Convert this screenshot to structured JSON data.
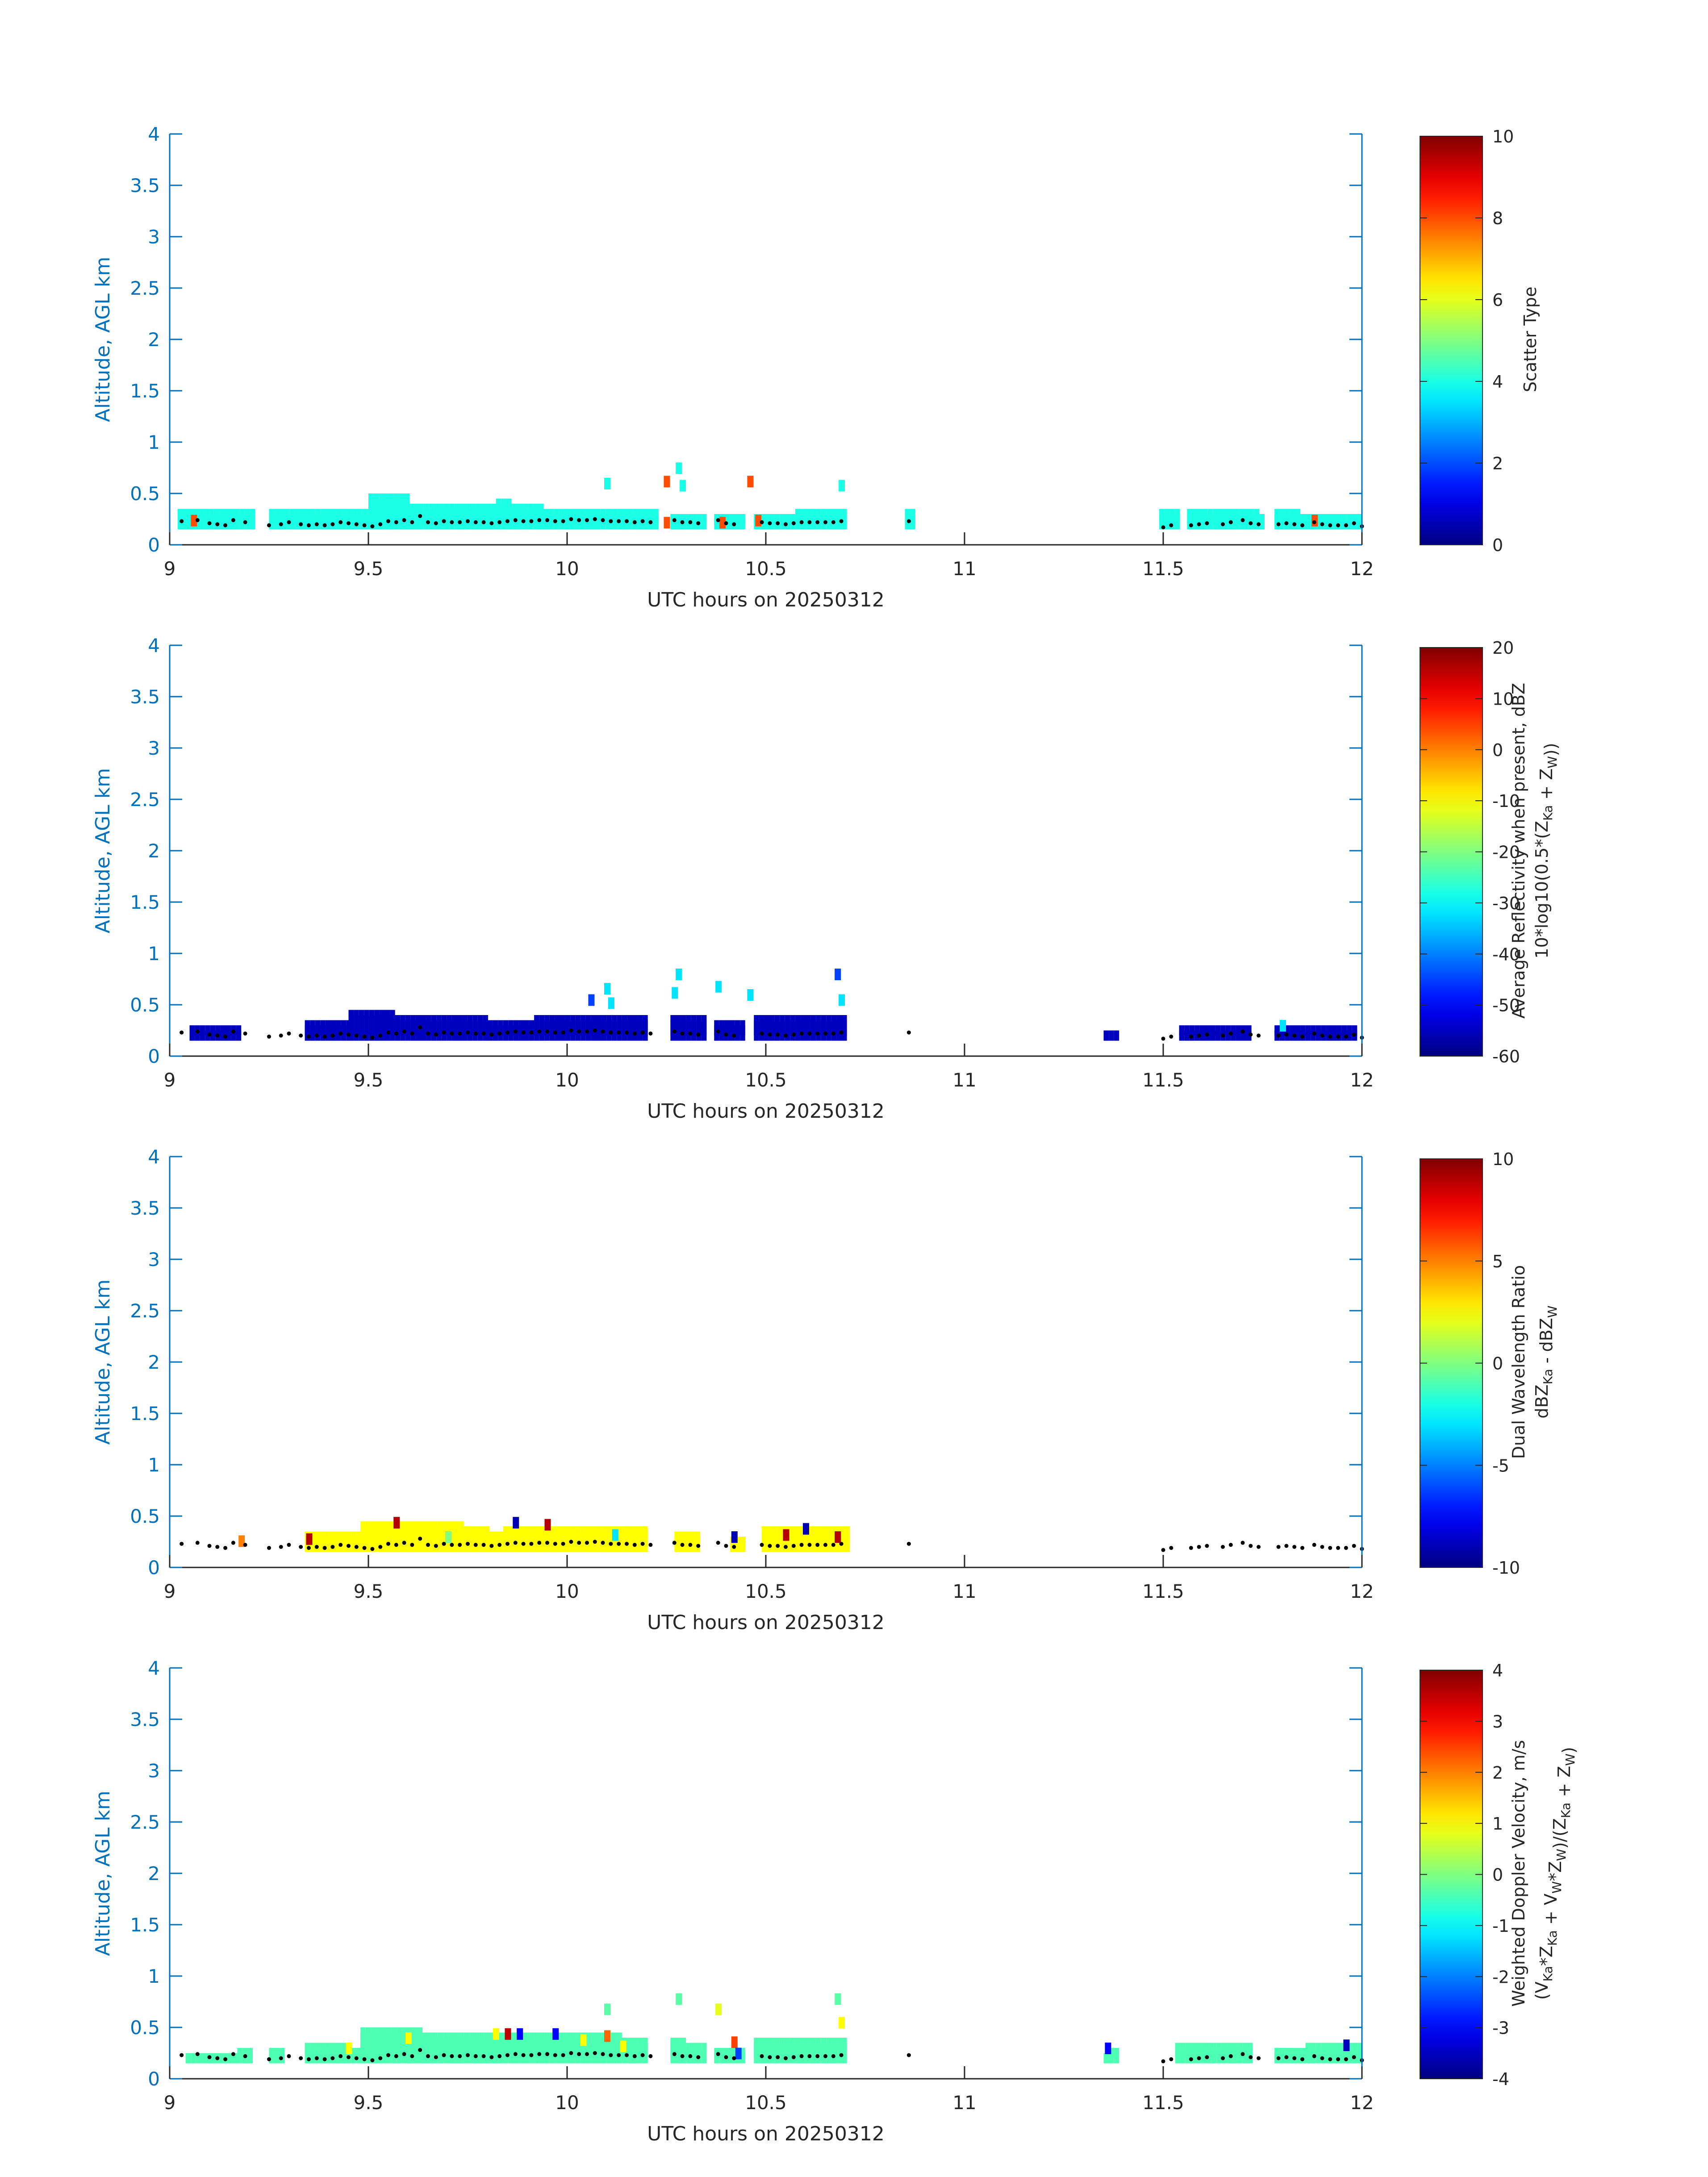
{
  "figure": {
    "axis_color": "#0072BD",
    "text_color": "#262626",
    "background": "#ffffff"
  },
  "chart_data": [
    {
      "type": "heatmap",
      "xlabel": "UTC hours on 20250312",
      "ylabel": "Altitude, AGL km",
      "xlim": [
        9,
        12
      ],
      "ylim": [
        0,
        4
      ],
      "x_ticks": [
        "9",
        "9.5",
        "10",
        "10.5",
        "11",
        "11.5",
        "12"
      ],
      "y_ticks": [
        "0",
        "0.5",
        "1",
        "1.5",
        "2",
        "2.5",
        "3",
        "3.5",
        "4"
      ],
      "colorbar": {
        "label_lines": [
          "Scatter Type"
        ],
        "range": [
          0,
          10
        ],
        "ticks": [
          "0",
          "2",
          "4",
          "6",
          "8",
          "10"
        ]
      },
      "dominant_value": 4,
      "fill_segments": [
        [
          9.02,
          9.21,
          0.35
        ],
        [
          9.25,
          9.5,
          0.35
        ],
        [
          9.5,
          9.6,
          0.45
        ],
        [
          9.6,
          9.85,
          0.42
        ],
        [
          9.85,
          10.1,
          0.38
        ],
        [
          10.1,
          10.22,
          0.35
        ],
        [
          10.26,
          10.35,
          0.3
        ],
        [
          10.37,
          10.44,
          0.3
        ],
        [
          10.47,
          10.7,
          0.32
        ],
        [
          10.85,
          10.87,
          0.35
        ],
        [
          11.49,
          11.53,
          0.35
        ],
        [
          11.56,
          11.75,
          0.32
        ],
        [
          11.78,
          12.0,
          0.32
        ]
      ],
      "features": [
        {
          "x": 10.1,
          "y": 0.6,
          "value": 4
        },
        {
          "x": 10.28,
          "y": 0.75,
          "value": 4
        },
        {
          "x": 10.29,
          "y": 0.58,
          "value": 4
        },
        {
          "x": 10.69,
          "y": 0.58,
          "value": 4
        },
        {
          "x": 10.25,
          "y": 0.62,
          "value": 8
        },
        {
          "x": 10.25,
          "y": 0.22,
          "value": 8
        },
        {
          "x": 10.46,
          "y": 0.62,
          "value": 8
        },
        {
          "x": 10.39,
          "y": 0.22,
          "value": 8
        },
        {
          "x": 10.48,
          "y": 0.24,
          "value": 8
        },
        {
          "x": 9.06,
          "y": 0.24,
          "value": 8
        },
        {
          "x": 11.88,
          "y": 0.24,
          "value": 8
        }
      ]
    },
    {
      "type": "heatmap",
      "xlabel": "UTC hours on 20250312",
      "ylabel": "Altitude, AGL km",
      "xlim": [
        9,
        12
      ],
      "ylim": [
        0,
        4
      ],
      "x_ticks": [
        "9",
        "9.5",
        "10",
        "10.5",
        "11",
        "11.5",
        "12"
      ],
      "y_ticks": [
        "0",
        "0.5",
        "1",
        "1.5",
        "2",
        "2.5",
        "3",
        "3.5",
        "4"
      ],
      "colorbar": {
        "label_lines": [
          "Average Reflectivity when present, dBZ",
          "10*log10(0.5*(Z_Ka + Z_W))"
        ],
        "range": [
          -60,
          20
        ],
        "ticks": [
          "-60",
          "-50",
          "-40",
          "-30",
          "-20",
          "-10",
          "0",
          "10",
          "20"
        ]
      },
      "dominant_value": -55,
      "fill_segments": [
        [
          9.05,
          9.18,
          0.28
        ],
        [
          9.34,
          9.45,
          0.33
        ],
        [
          9.45,
          9.8,
          0.42
        ],
        [
          9.8,
          10.2,
          0.38
        ],
        [
          10.26,
          10.35,
          0.36
        ],
        [
          10.37,
          10.44,
          0.32
        ],
        [
          10.47,
          10.7,
          0.38
        ],
        [
          11.35,
          11.38,
          0.26
        ],
        [
          11.54,
          11.72,
          0.3
        ],
        [
          11.78,
          11.98,
          0.3
        ]
      ],
      "features": [
        {
          "x": 10.1,
          "y": 0.66,
          "value": -32
        },
        {
          "x": 10.11,
          "y": 0.52,
          "value": -32
        },
        {
          "x": 10.28,
          "y": 0.8,
          "value": -32
        },
        {
          "x": 10.27,
          "y": 0.62,
          "value": -32
        },
        {
          "x": 10.38,
          "y": 0.68,
          "value": -32
        },
        {
          "x": 10.46,
          "y": 0.6,
          "value": -32
        },
        {
          "x": 10.69,
          "y": 0.55,
          "value": -32
        },
        {
          "x": 10.68,
          "y": 0.8,
          "value": -45
        },
        {
          "x": 10.06,
          "y": 0.55,
          "value": -45
        },
        {
          "x": 11.8,
          "y": 0.3,
          "value": -32
        }
      ]
    },
    {
      "type": "heatmap",
      "xlabel": "UTC hours on 20250312",
      "ylabel": "Altitude, AGL km",
      "xlim": [
        9,
        12
      ],
      "ylim": [
        0,
        4
      ],
      "x_ticks": [
        "9",
        "9.5",
        "10",
        "10.5",
        "11",
        "11.5",
        "12"
      ],
      "y_ticks": [
        "0",
        "0.5",
        "1",
        "1.5",
        "2",
        "2.5",
        "3",
        "3.5",
        "4"
      ],
      "colorbar": {
        "label_lines": [
          "Dual Wavelength Ratio",
          "dBZ_Ka - dBZ_W"
        ],
        "range": [
          -10,
          10
        ],
        "ticks": [
          "-10",
          "-5",
          "0",
          "5",
          "10"
        ]
      },
      "dominant_value": 2.5,
      "fill_segments": [
        [
          9.34,
          9.48,
          0.32
        ],
        [
          9.48,
          9.8,
          0.4
        ],
        [
          9.8,
          10.2,
          0.36
        ],
        [
          10.27,
          10.33,
          0.35
        ],
        [
          10.41,
          10.44,
          0.32
        ],
        [
          10.49,
          10.7,
          0.36
        ]
      ],
      "features": [
        {
          "x": 9.57,
          "y": 0.44,
          "value": 9
        },
        {
          "x": 9.87,
          "y": 0.44,
          "value": -9
        },
        {
          "x": 9.95,
          "y": 0.42,
          "value": 9
        },
        {
          "x": 10.68,
          "y": 0.3,
          "value": 9
        },
        {
          "x": 10.55,
          "y": 0.32,
          "value": 9
        },
        {
          "x": 10.42,
          "y": 0.3,
          "value": -9
        },
        {
          "x": 10.6,
          "y": 0.38,
          "value": -9
        },
        {
          "x": 9.7,
          "y": 0.3,
          "value": 0
        },
        {
          "x": 10.12,
          "y": 0.32,
          "value": -3
        },
        {
          "x": 9.35,
          "y": 0.28,
          "value": 9
        },
        {
          "x": 9.18,
          "y": 0.26,
          "value": 5
        }
      ]
    },
    {
      "type": "heatmap",
      "xlabel": "UTC hours on 20250312",
      "ylabel": "Altitude, AGL km",
      "xlim": [
        9,
        12
      ],
      "ylim": [
        0,
        4
      ],
      "x_ticks": [
        "9",
        "9.5",
        "10",
        "10.5",
        "11",
        "11.5",
        "12"
      ],
      "y_ticks": [
        "0",
        "0.5",
        "1",
        "1.5",
        "2",
        "2.5",
        "3",
        "3.5",
        "4"
      ],
      "colorbar": {
        "label_lines": [
          "Weighted Doppler Velocity, m/s",
          "(V_Ka*Z_Ka + V_W*Z_W)/(Z_Ka + Z_W)"
        ],
        "range": [
          -4,
          4
        ],
        "ticks": [
          "-4",
          "-3",
          "-2",
          "-1",
          "0",
          "1",
          "2",
          "3",
          "4"
        ]
      },
      "dominant_value": -0.4,
      "fill_segments": [
        [
          9.04,
          9.2,
          0.28
        ],
        [
          9.25,
          9.28,
          0.28
        ],
        [
          9.34,
          9.48,
          0.34
        ],
        [
          9.48,
          9.8,
          0.45
        ],
        [
          9.8,
          10.2,
          0.4
        ],
        [
          10.26,
          10.35,
          0.36
        ],
        [
          10.37,
          10.44,
          0.3
        ],
        [
          10.47,
          10.7,
          0.38
        ],
        [
          11.35,
          11.38,
          0.28
        ],
        [
          11.53,
          11.72,
          0.32
        ],
        [
          11.78,
          11.99,
          0.32
        ]
      ],
      "features": [
        {
          "x": 9.6,
          "y": 0.4,
          "value": 1
        },
        {
          "x": 9.82,
          "y": 0.44,
          "value": 1
        },
        {
          "x": 10.04,
          "y": 0.38,
          "value": 1
        },
        {
          "x": 10.14,
          "y": 0.32,
          "value": 1
        },
        {
          "x": 9.45,
          "y": 0.3,
          "value": 1
        },
        {
          "x": 9.85,
          "y": 0.44,
          "value": 3.5
        },
        {
          "x": 10.1,
          "y": 0.42,
          "value": 2.2
        },
        {
          "x": 10.42,
          "y": 0.36,
          "value": 2.5
        },
        {
          "x": 9.88,
          "y": 0.44,
          "value": -3
        },
        {
          "x": 9.97,
          "y": 0.44,
          "value": -3
        },
        {
          "x": 10.43,
          "y": 0.25,
          "value": -2.5
        },
        {
          "x": 11.36,
          "y": 0.3,
          "value": -3
        },
        {
          "x": 11.96,
          "y": 0.33,
          "value": -3.5
        },
        {
          "x": 10.1,
          "y": 0.68,
          "value": -0.3
        },
        {
          "x": 10.28,
          "y": 0.78,
          "value": -0.3
        },
        {
          "x": 10.38,
          "y": 0.68,
          "value": 0.8
        },
        {
          "x": 10.68,
          "y": 0.78,
          "value": -0.3
        },
        {
          "x": 10.69,
          "y": 0.55,
          "value": 1
        }
      ]
    }
  ],
  "cloud_base_dots": {
    "x": [
      9.03,
      9.07,
      9.1,
      9.12,
      9.14,
      9.16,
      9.19,
      9.25,
      9.28,
      9.3,
      9.33,
      9.35,
      9.37,
      9.39,
      9.41,
      9.43,
      9.45,
      9.47,
      9.49,
      9.51,
      9.53,
      9.55,
      9.57,
      9.59,
      9.61,
      9.63,
      9.65,
      9.67,
      9.69,
      9.71,
      9.73,
      9.75,
      9.77,
      9.79,
      9.81,
      9.83,
      9.85,
      9.87,
      9.89,
      9.91,
      9.93,
      9.95,
      9.97,
      9.99,
      10.01,
      10.03,
      10.05,
      10.07,
      10.09,
      10.11,
      10.13,
      10.15,
      10.17,
      10.19,
      10.21,
      10.27,
      10.29,
      10.31,
      10.33,
      10.38,
      10.4,
      10.42,
      10.49,
      10.51,
      10.53,
      10.55,
      10.57,
      10.59,
      10.61,
      10.63,
      10.65,
      10.67,
      10.69,
      10.86,
      11.5,
      11.52,
      11.57,
      11.59,
      11.61,
      11.65,
      11.67,
      11.7,
      11.72,
      11.74,
      11.79,
      11.81,
      11.83,
      11.85,
      11.88,
      11.9,
      11.92,
      11.94,
      11.96,
      11.98,
      12.0
    ],
    "y": [
      0.23,
      0.24,
      0.21,
      0.2,
      0.19,
      0.24,
      0.22,
      0.19,
      0.2,
      0.22,
      0.2,
      0.19,
      0.2,
      0.19,
      0.2,
      0.22,
      0.21,
      0.2,
      0.19,
      0.18,
      0.2,
      0.23,
      0.22,
      0.24,
      0.22,
      0.28,
      0.22,
      0.21,
      0.23,
      0.22,
      0.22,
      0.23,
      0.22,
      0.22,
      0.21,
      0.22,
      0.23,
      0.24,
      0.23,
      0.23,
      0.24,
      0.24,
      0.23,
      0.23,
      0.25,
      0.24,
      0.24,
      0.25,
      0.24,
      0.23,
      0.23,
      0.23,
      0.22,
      0.23,
      0.22,
      0.24,
      0.22,
      0.22,
      0.21,
      0.24,
      0.21,
      0.2,
      0.22,
      0.21,
      0.21,
      0.2,
      0.21,
      0.22,
      0.22,
      0.22,
      0.22,
      0.22,
      0.23,
      0.23,
      0.17,
      0.19,
      0.19,
      0.2,
      0.21,
      0.2,
      0.22,
      0.24,
      0.21,
      0.2,
      0.2,
      0.21,
      0.2,
      0.19,
      0.22,
      0.2,
      0.19,
      0.19,
      0.19,
      0.21,
      0.18
    ]
  }
}
